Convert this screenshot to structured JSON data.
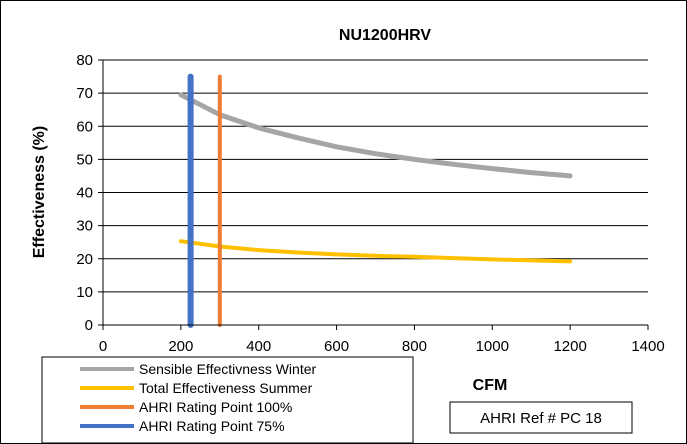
{
  "chart_data": {
    "type": "line",
    "title": "NU1200HRV",
    "xlabel": "CFM",
    "ylabel": "Effectiveness (%)",
    "xlim": [
      0,
      1400
    ],
    "ylim": [
      0,
      80
    ],
    "xticks": [
      "0",
      "200",
      "400",
      "600",
      "800",
      "1000",
      "1200",
      "1400"
    ],
    "yticks": [
      "0",
      "10",
      "20",
      "30",
      "40",
      "50",
      "60",
      "70",
      "80"
    ],
    "grid": "horizontal",
    "legend_position": "bottom-left",
    "series": [
      {
        "name": "Sensible Effectivness Winter",
        "color": "#A5A5A5",
        "x": [
          200,
          300,
          400,
          500,
          600,
          700,
          800,
          900,
          1000,
          1100,
          1200
        ],
        "y": [
          69.5,
          63.5,
          59.5,
          56.5,
          53.8,
          51.7,
          50.0,
          48.5,
          47.2,
          46.0,
          45.0
        ]
      },
      {
        "name": "Total Effectiveness Summer",
        "color": "#FFC000",
        "x": [
          200,
          300,
          400,
          500,
          600,
          700,
          800,
          900,
          1000,
          1100,
          1200
        ],
        "y": [
          25.3,
          23.7,
          22.6,
          21.9,
          21.3,
          20.9,
          20.6,
          20.2,
          19.8,
          19.5,
          19.2
        ]
      },
      {
        "name": "AHRI Rating Point 100%",
        "color": "#ED7D31",
        "x": [
          300,
          300
        ],
        "y": [
          0,
          75
        ]
      },
      {
        "name": "AHRI Rating Point 75%",
        "color": "#4472C4",
        "x": [
          225,
          225
        ],
        "y": [
          0,
          75
        ]
      }
    ],
    "annotation": "AHRI Ref # PC 18"
  }
}
